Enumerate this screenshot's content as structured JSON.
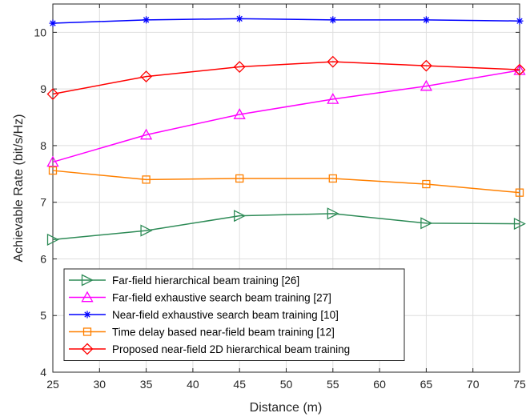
{
  "chart_data": {
    "type": "line",
    "xlabel": "Distance (m)",
    "ylabel": "Achievable Rate (bit/s/Hz)",
    "xlim": [
      25,
      75
    ],
    "ylim": [
      4,
      10.5
    ],
    "xticks": [
      25,
      30,
      35,
      40,
      45,
      50,
      55,
      60,
      65,
      70,
      75
    ],
    "yticks": [
      4,
      5,
      6,
      7,
      8,
      9,
      10
    ],
    "grid": true,
    "legend_position": "bottom-left",
    "x": [
      25,
      35,
      45,
      55,
      65,
      75
    ],
    "series": [
      {
        "name": "Far-field hierarchical beam training [26]",
        "color": "#2e8b57",
        "marker": "triangle-right",
        "values": [
          6.34,
          6.5,
          6.76,
          6.8,
          6.63,
          6.62
        ]
      },
      {
        "name": "Far-field exhaustive search beam training [27]",
        "color": "#ff00ff",
        "marker": "triangle-up",
        "values": [
          7.71,
          8.19,
          8.55,
          8.82,
          9.05,
          9.33
        ]
      },
      {
        "name": "Near-field exhaustive search beam training [10]",
        "color": "#0000ff",
        "marker": "asterisk",
        "values": [
          10.16,
          10.22,
          10.24,
          10.22,
          10.22,
          10.2
        ]
      },
      {
        "name": "Time delay based near-field beam training [12]",
        "color": "#ff8000",
        "marker": "square",
        "values": [
          7.56,
          7.4,
          7.42,
          7.42,
          7.32,
          7.17
        ]
      },
      {
        "name": "Proposed near-field 2D hierarchical beam training",
        "color": "#ff0000",
        "marker": "diamond",
        "values": [
          8.91,
          9.22,
          9.39,
          9.48,
          9.41,
          9.34
        ]
      }
    ]
  }
}
